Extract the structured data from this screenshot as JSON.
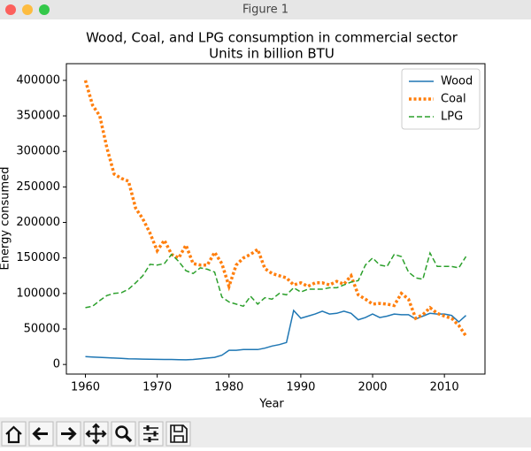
{
  "window": {
    "title": "Figure 1"
  },
  "chart_data": {
    "type": "line",
    "title": "Wood, Coal, and LPG consumption in commercial sector",
    "subtitle": "Units in billion BTU",
    "x_label": "Year",
    "y_label": "Energy consumed",
    "x": [
      1960,
      1961,
      1962,
      1963,
      1964,
      1965,
      1966,
      1967,
      1968,
      1969,
      1970,
      1971,
      1972,
      1973,
      1974,
      1975,
      1976,
      1977,
      1978,
      1979,
      1980,
      1981,
      1982,
      1983,
      1984,
      1985,
      1986,
      1987,
      1988,
      1989,
      1990,
      1991,
      1992,
      1993,
      1994,
      1995,
      1996,
      1997,
      1998,
      1999,
      2000,
      2001,
      2002,
      2003,
      2004,
      2005,
      2006,
      2007,
      2008,
      2009,
      2010,
      2011,
      2012,
      2013
    ],
    "series": [
      {
        "name": "Wood",
        "color": "#1f77b4",
        "linestyle": "solid",
        "values": [
          11000,
          10500,
          10000,
          9500,
          9000,
          8500,
          8000,
          7800,
          7600,
          7400,
          7200,
          7000,
          7000,
          6800,
          6500,
          7000,
          8000,
          9000,
          10000,
          13000,
          20000,
          20000,
          21000,
          21000,
          21000,
          23000,
          26000,
          28000,
          31000,
          76000,
          65000,
          68000,
          71000,
          75000,
          71000,
          72000,
          75000,
          72000,
          63000,
          66000,
          71000,
          66000,
          68000,
          71000,
          70000,
          70000,
          64000,
          68000,
          72000,
          71000,
          71000,
          69000,
          60000,
          69000
        ]
      },
      {
        "name": "Coal",
        "color": "#ff7f0e",
        "linestyle": "dotted",
        "values": [
          400000,
          365000,
          350000,
          305000,
          268000,
          262000,
          258000,
          220000,
          205000,
          185000,
          160000,
          175000,
          155000,
          150000,
          168000,
          142000,
          140000,
          140000,
          158000,
          142000,
          110000,
          140000,
          150000,
          155000,
          162000,
          135000,
          128000,
          125000,
          122000,
          112000,
          115000,
          110000,
          115000,
          115000,
          112000,
          117000,
          113000,
          125000,
          98000,
          92000,
          85000,
          86000,
          85000,
          83000,
          100000,
          92000,
          65000,
          70000,
          80000,
          72000,
          68000,
          65000,
          55000,
          40000
        ]
      },
      {
        "name": "LPG",
        "color": "#2ca02c",
        "linestyle": "dashed",
        "values": [
          80000,
          82000,
          90000,
          97000,
          100000,
          101000,
          106000,
          115000,
          125000,
          141000,
          140000,
          142000,
          155000,
          145000,
          132000,
          128000,
          136000,
          134000,
          130000,
          95000,
          88000,
          85000,
          82000,
          96000,
          85000,
          94000,
          92000,
          100000,
          98000,
          108000,
          102000,
          106000,
          106000,
          106000,
          108000,
          108000,
          112000,
          116000,
          118000,
          140000,
          150000,
          140000,
          138000,
          155000,
          152000,
          130000,
          122000,
          120000,
          157000,
          138000,
          138000,
          138000,
          136000,
          152000
        ]
      }
    ],
    "xlim": [
      1957.35,
      2015.65
    ],
    "xticks": [
      1960,
      1970,
      1980,
      1990,
      2000,
      2010
    ],
    "ylim": [
      -13500,
      423500
    ],
    "yticks": [
      0,
      50000,
      100000,
      150000,
      200000,
      250000,
      300000,
      350000,
      400000
    ],
    "legend": "upper right"
  }
}
